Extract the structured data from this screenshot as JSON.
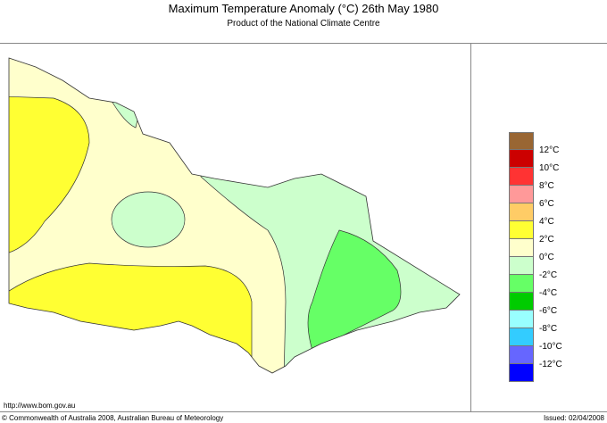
{
  "header": {
    "title": "Maximum Temperature Anomaly (°C)  26th May 1980",
    "subtitle": "Product of the National Climate Centre"
  },
  "footer": {
    "url": "http://www.bom.gov.au",
    "copyright": "© Commonwealth of Australia 2008, Australian Bureau of Meteorology",
    "issued": "Issued: 02/04/2008"
  },
  "legend": {
    "colors": [
      "#996633",
      "#cc0000",
      "#ff3333",
      "#ff9999",
      "#ffcc66",
      "#ffff33",
      "#ffffcc",
      "#ccffcc",
      "#66ff66",
      "#00cc00",
      "#99ffff",
      "#33ccff",
      "#6666ff",
      "#0000ff"
    ],
    "labels": [
      "12°C",
      "10°C",
      "8°C",
      "6°C",
      "4°C",
      "2°C",
      "0°C",
      "-2°C",
      "-4°C",
      "-6°C",
      "-8°C",
      "-10°C",
      "-12°C"
    ]
  },
  "map": {
    "region": "Victoria",
    "zone_colors": {
      "cream": "#ffffcc",
      "yellow": "#ffff33",
      "lightgreen": "#ccffcc",
      "green": "#66ff66"
    }
  }
}
